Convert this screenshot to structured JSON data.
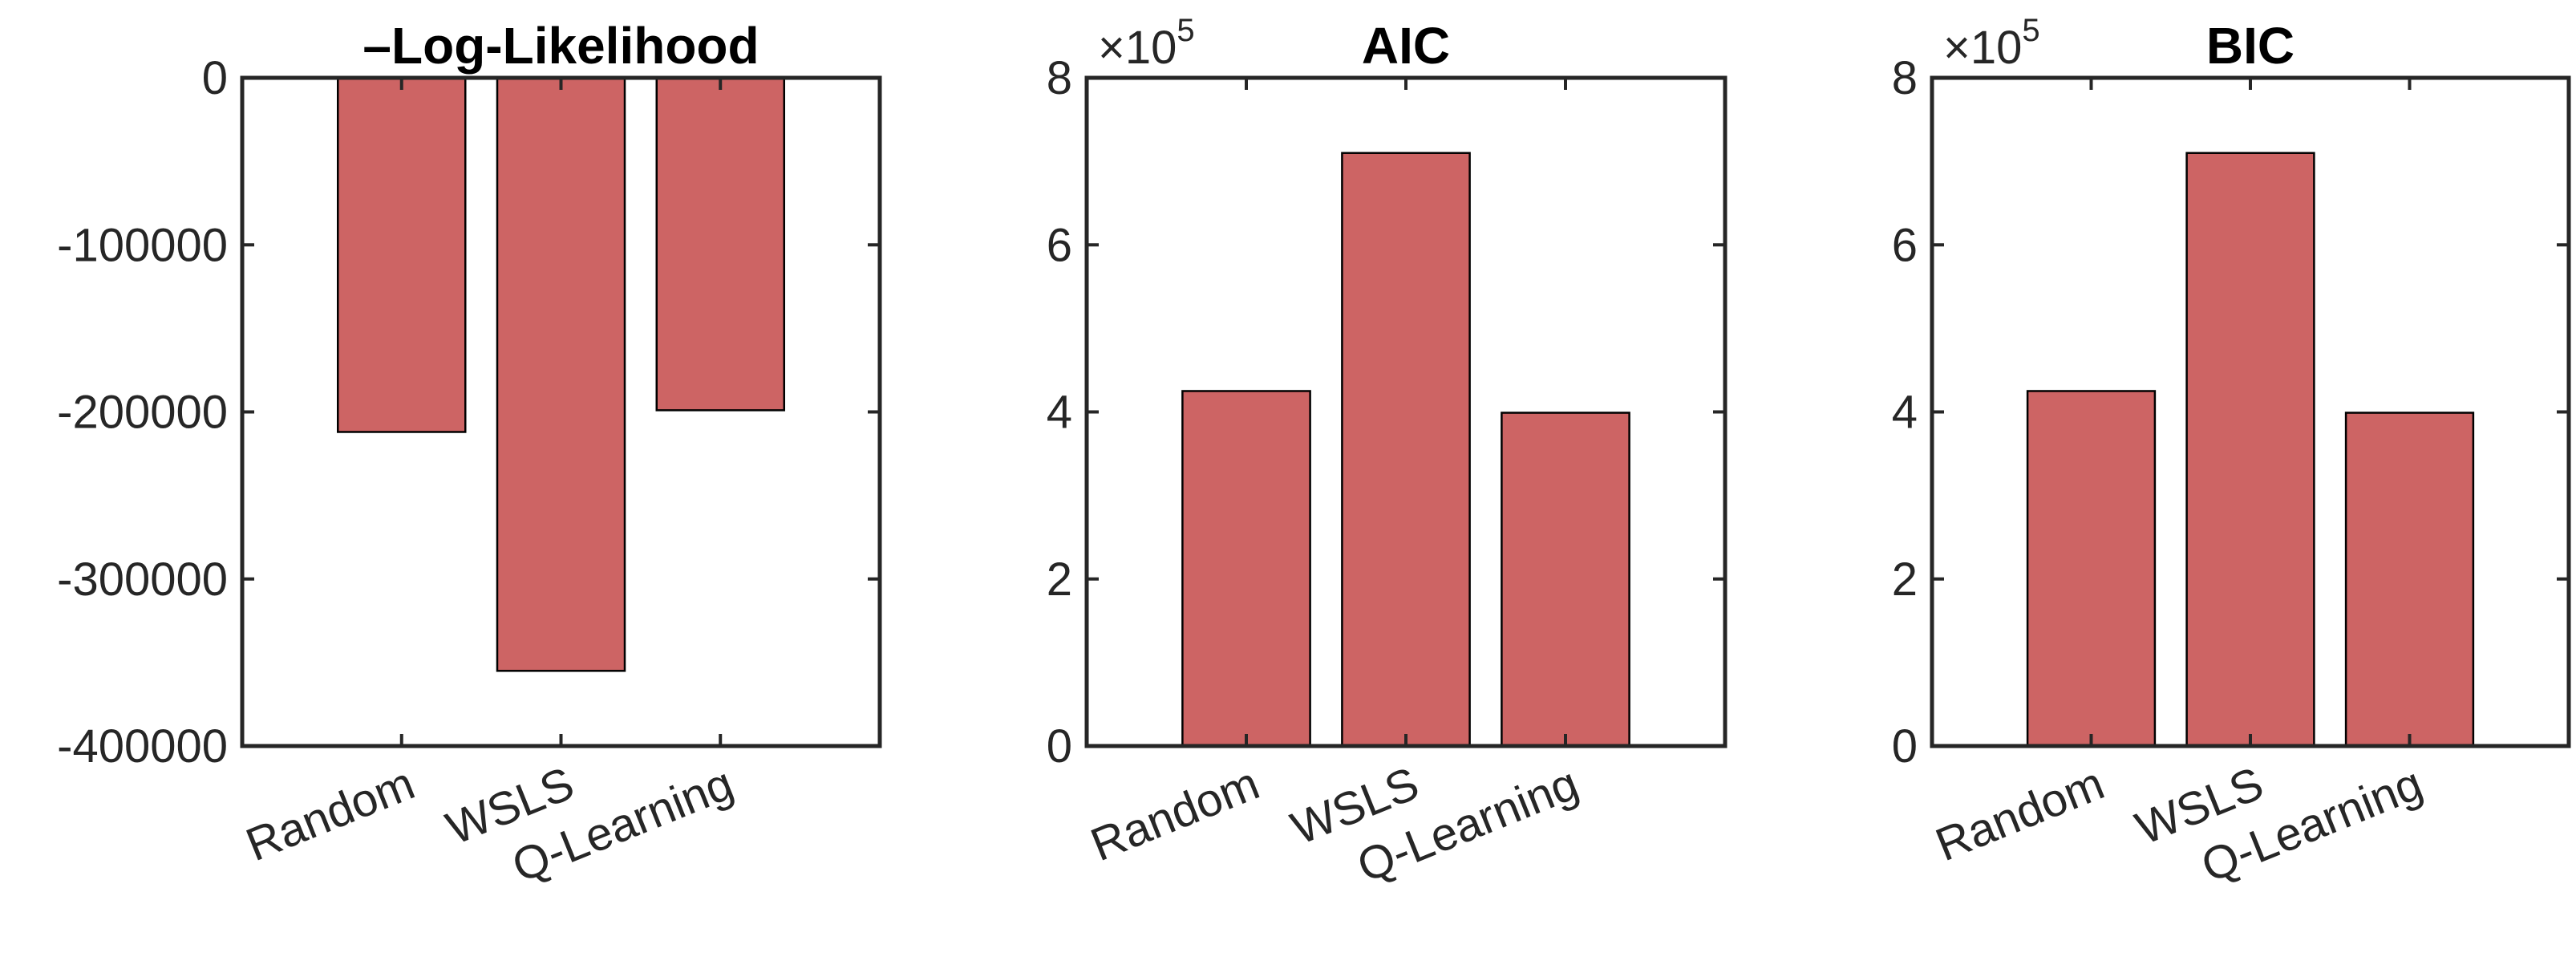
{
  "chart_data": [
    {
      "type": "bar",
      "title": "–Log-Likelihood",
      "categories": [
        "Random",
        "WSLS",
        "Q-Learning"
      ],
      "values": [
        -212000,
        -355000,
        -199000
      ],
      "ylim": [
        -400000,
        0
      ],
      "yticks": [
        0,
        -100000,
        -200000,
        -300000,
        -400000
      ],
      "ytick_labels": [
        "0",
        "-100000",
        "-200000",
        "-300000",
        "-400000"
      ],
      "exponent_label": "",
      "bar_color": "#CD6464",
      "grid": false
    },
    {
      "type": "bar",
      "title": "AIC",
      "categories": [
        "Random",
        "WSLS",
        "Q-Learning"
      ],
      "values": [
        425000,
        710000,
        399000
      ],
      "ylim": [
        0,
        800000
      ],
      "yticks": [
        0,
        200000,
        400000,
        600000,
        800000
      ],
      "ytick_labels": [
        "0",
        "2",
        "4",
        "6",
        "8"
      ],
      "exponent_label": "×10",
      "exponent_power": "5",
      "bar_color": "#CD6464",
      "grid": false
    },
    {
      "type": "bar",
      "title": "BIC",
      "categories": [
        "Random",
        "WSLS",
        "Q-Learning"
      ],
      "values": [
        425000,
        710000,
        399000
      ],
      "ylim": [
        0,
        800000
      ],
      "yticks": [
        0,
        200000,
        400000,
        600000,
        800000
      ],
      "ytick_labels": [
        "0",
        "2",
        "4",
        "6",
        "8"
      ],
      "exponent_label": "×10",
      "exponent_power": "5",
      "bar_color": "#CD6464",
      "grid": false
    }
  ]
}
